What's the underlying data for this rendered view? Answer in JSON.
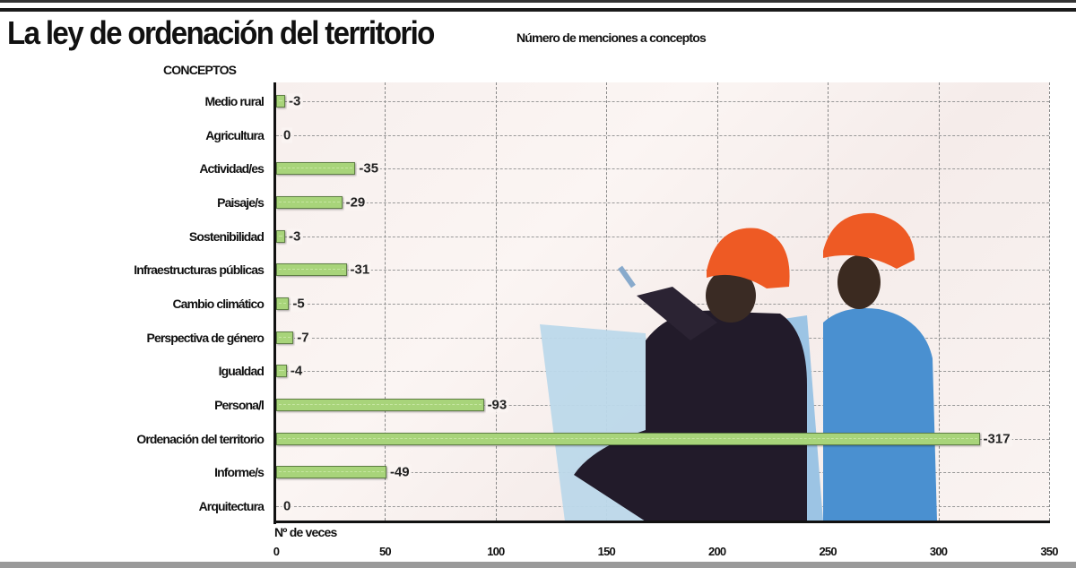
{
  "header": {
    "title": "La ley de ordenación del territorio",
    "subtitle": "Número de menciones a conceptos"
  },
  "chart_data": {
    "type": "bar",
    "orientation": "horizontal",
    "title": "La ley de ordenación del territorio",
    "subtitle": "Número de menciones a conceptos",
    "ylabel": "CONCEPTOS",
    "xlabel": "Nº de veces",
    "categories": [
      "Medio rural",
      "Agricultura",
      "Actividad/es",
      "Paisaje/s",
      "Sostenibilidad",
      "Infraestructuras públicas",
      "Cambio climático",
      "Perspectiva de género",
      "Igualdad",
      "Persona/l",
      "Ordenación del territorio",
      "Informe/s",
      "Arquitectura"
    ],
    "values": [
      3,
      0,
      35,
      29,
      3,
      31,
      5,
      7,
      4,
      93,
      317,
      49,
      0
    ],
    "xlim": [
      0,
      350
    ],
    "xticks": [
      "0",
      "50",
      "100",
      "150",
      "200",
      "250",
      "300",
      "350"
    ],
    "grid": true,
    "bar_color": "#a8d47a",
    "legend": null
  },
  "labels": {
    "concepts_header": "CONCEPTOS",
    "x_axis_label": "Nº de veces"
  },
  "illustration": {
    "description": "two-workers-hard-hats-photo",
    "helmet_color": "#ee5a24"
  }
}
